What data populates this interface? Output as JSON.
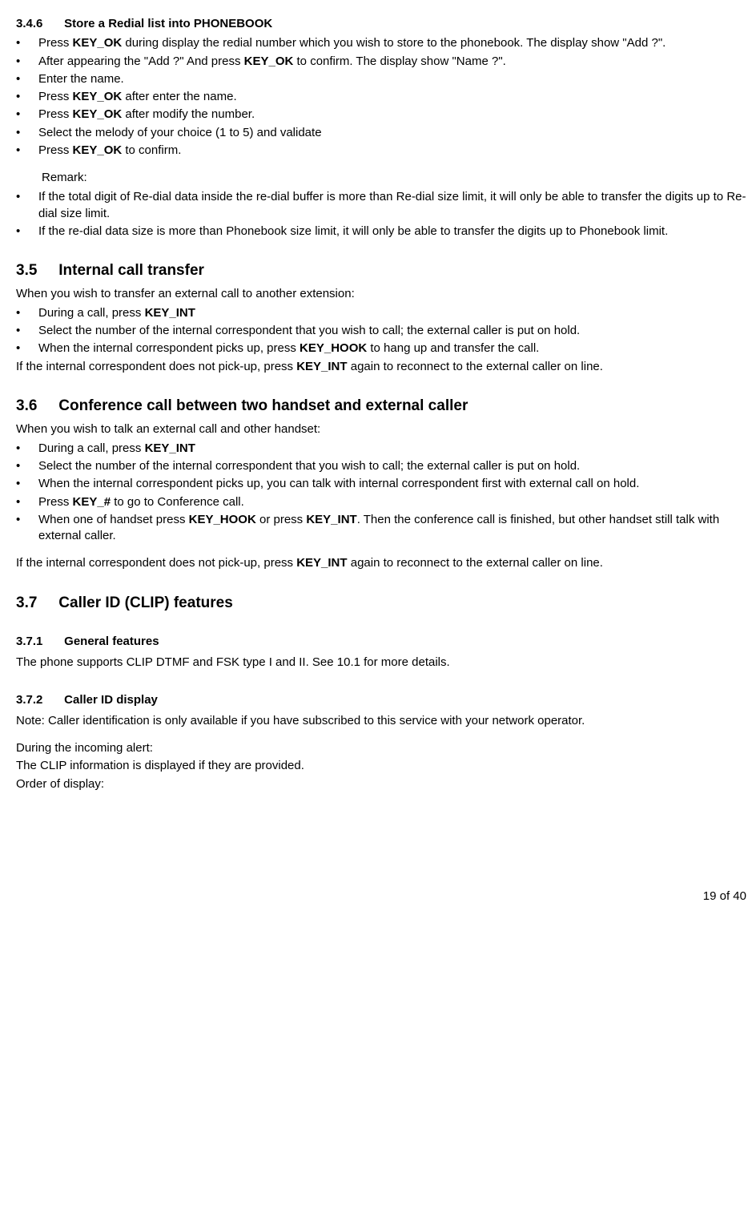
{
  "s346": {
    "num": "3.4.6",
    "title": "Store a Redial list into PHONEBOOK",
    "items": [
      "Press <b>KEY_OK</b> during display the redial number which you wish to store to the phonebook. The display show \"Add ?\".",
      "After appearing the  \"Add ?\"  And press <b>KEY_OK</b> to confirm. The display show \"Name ?\".",
      "Enter the name.",
      "Press <b>KEY_OK</b> after enter the name.",
      "Press <b>KEY_OK</b> after modify the number.",
      "Select the melody of your choice (1 to 5) and validate",
      "Press <b>KEY_OK</b> to confirm."
    ],
    "remark_label": "Remark:",
    "remarks": [
      " If the total digit of Re-dial data inside the re-dial buffer is more than Re-dial size limit, it will only be able to transfer the digits up to Re-dial size limit.",
      " If the re-dial data size is more than Phonebook size limit, it will only be able to transfer the digits up to Phonebook limit."
    ]
  },
  "s35": {
    "num": "3.5",
    "title": "Internal call transfer",
    "intro": "When you wish to transfer an external call to another extension:",
    "items": [
      "During a call, press <b>KEY_INT</b>",
      "Select the number of the internal correspondent that you wish to call; the external caller is put on hold.",
      "When the internal correspondent picks up, press <b>KEY_HOOK</b> to hang up and transfer the call."
    ],
    "outro": "If the internal correspondent does not pick-up, press <b>KEY_INT</b> again to reconnect to the external caller on line."
  },
  "s36": {
    "num": "3.6",
    "title": "Conference call between two handset and external caller",
    "intro": "When you wish to talk an external call and other handset:",
    "items": [
      "During a call, press <b>KEY_INT</b>",
      "Select the number of the internal correspondent that you wish to call; the external caller is put on hold.",
      "When the internal correspondent picks up, you can talk with internal correspondent first with external call on hold.",
      "Press <b>KEY_#</b> to go to Conference call.",
      "When one of handset press <b>KEY_HOOK</b> or press <b>KEY_INT</b>. Then the conference call is finished, but other handset still talk with external caller."
    ],
    "outro": "If the internal correspondent does not pick-up, press <b>KEY_INT</b> again to reconnect to the external caller on line."
  },
  "s37": {
    "num": "3.7",
    "title": "Caller ID (CLIP) features"
  },
  "s371": {
    "num": "3.7.1",
    "title": "General features",
    "text": "The phone supports CLIP DTMF and FSK type I and II. See 10.1 for more details."
  },
  "s372": {
    "num": "3.7.2",
    "title": "Caller ID display",
    "note": "Note: Caller identification is only available if you have subscribed to this service with your network operator.",
    "l1": "During the incoming alert:",
    "l2": " The CLIP information is displayed if they are provided.",
    "l3": "Order of display:"
  },
  "footer": "19 of 40"
}
